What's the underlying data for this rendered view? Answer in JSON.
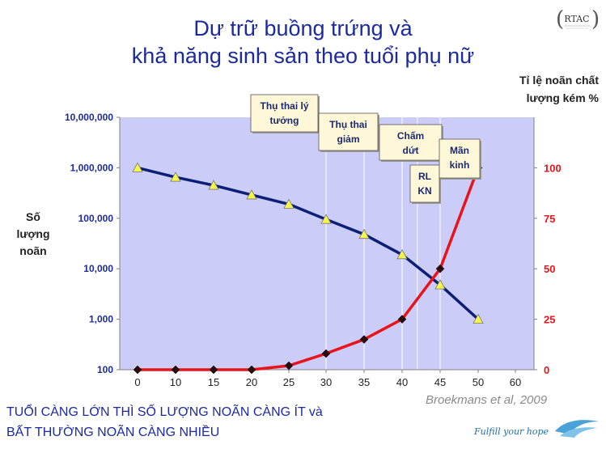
{
  "slide": {
    "title_line1": "Dự trữ buồng trứng và",
    "title_line2": "khả năng sinh sản theo tuổi phụ nữ",
    "logo_text": "RTAC",
    "right_axis_title_line1": "Tỉ lệ noãn chất",
    "right_axis_title_line2": "lượng kém %",
    "left_axis_title_line1": "Số",
    "left_axis_title_line2": "lượng",
    "left_axis_title_line3": "noãn",
    "citation": "Broekmans et al, 2009",
    "bottom_line1": "TUỔI CÀNG LỚN THÌ SỐ LƯỢNG NOÃN CÀNG ÍT và",
    "bottom_line2": "BẤT THƯỜNG NOÃN CÀNG NHIỀU",
    "tagline": "Fulfill your hope"
  },
  "chart_data": {
    "type": "line",
    "x_ticks": [
      "0",
      "10",
      "15",
      "20",
      "25",
      "30",
      "35",
      "40",
      "45",
      "50",
      "60"
    ],
    "left_ticks": [
      "100",
      "1,000",
      "10,000",
      "100,000",
      "1,000,000",
      "10,000,000"
    ],
    "left_scale": "log",
    "left_ylim": [
      100,
      10000000
    ],
    "right_ticks": [
      "0",
      "25",
      "50",
      "75",
      "100"
    ],
    "right_ylim": [
      0,
      125
    ],
    "series": [
      {
        "axis": "left",
        "color": "#0b1f75",
        "marker": "triangle",
        "marker_color": "#f5f54a",
        "x": [
          0,
          10,
          15,
          20,
          25,
          30,
          35,
          40,
          45,
          50
        ],
        "values": [
          1000000,
          650000,
          450000,
          290000,
          190000,
          95000,
          48000,
          19000,
          4800,
          1000
        ]
      },
      {
        "axis": "right",
        "color": "#e8141b",
        "marker": "diamond",
        "marker_color": "#2a0a0a",
        "x": [
          0,
          10,
          15,
          20,
          25,
          30,
          35,
          40,
          45,
          50
        ],
        "values": [
          0,
          0,
          0,
          0,
          2,
          8,
          15,
          25,
          50,
          100
        ]
      }
    ],
    "annotations": [
      {
        "line1": "Thụ thai lý",
        "line2": "tưởng",
        "x": 30
      },
      {
        "line1": "Thụ thai",
        "line2": "giảm",
        "x": 35
      },
      {
        "line1": "Chấm",
        "line2": "dứt",
        "x": 40
      },
      {
        "line1": "RL",
        "line2": "KN",
        "x": 42
      },
      {
        "line1": "Mãn",
        "line2": "kinh",
        "x": 45
      }
    ],
    "background_color": "#ccccf9",
    "grid": false
  }
}
